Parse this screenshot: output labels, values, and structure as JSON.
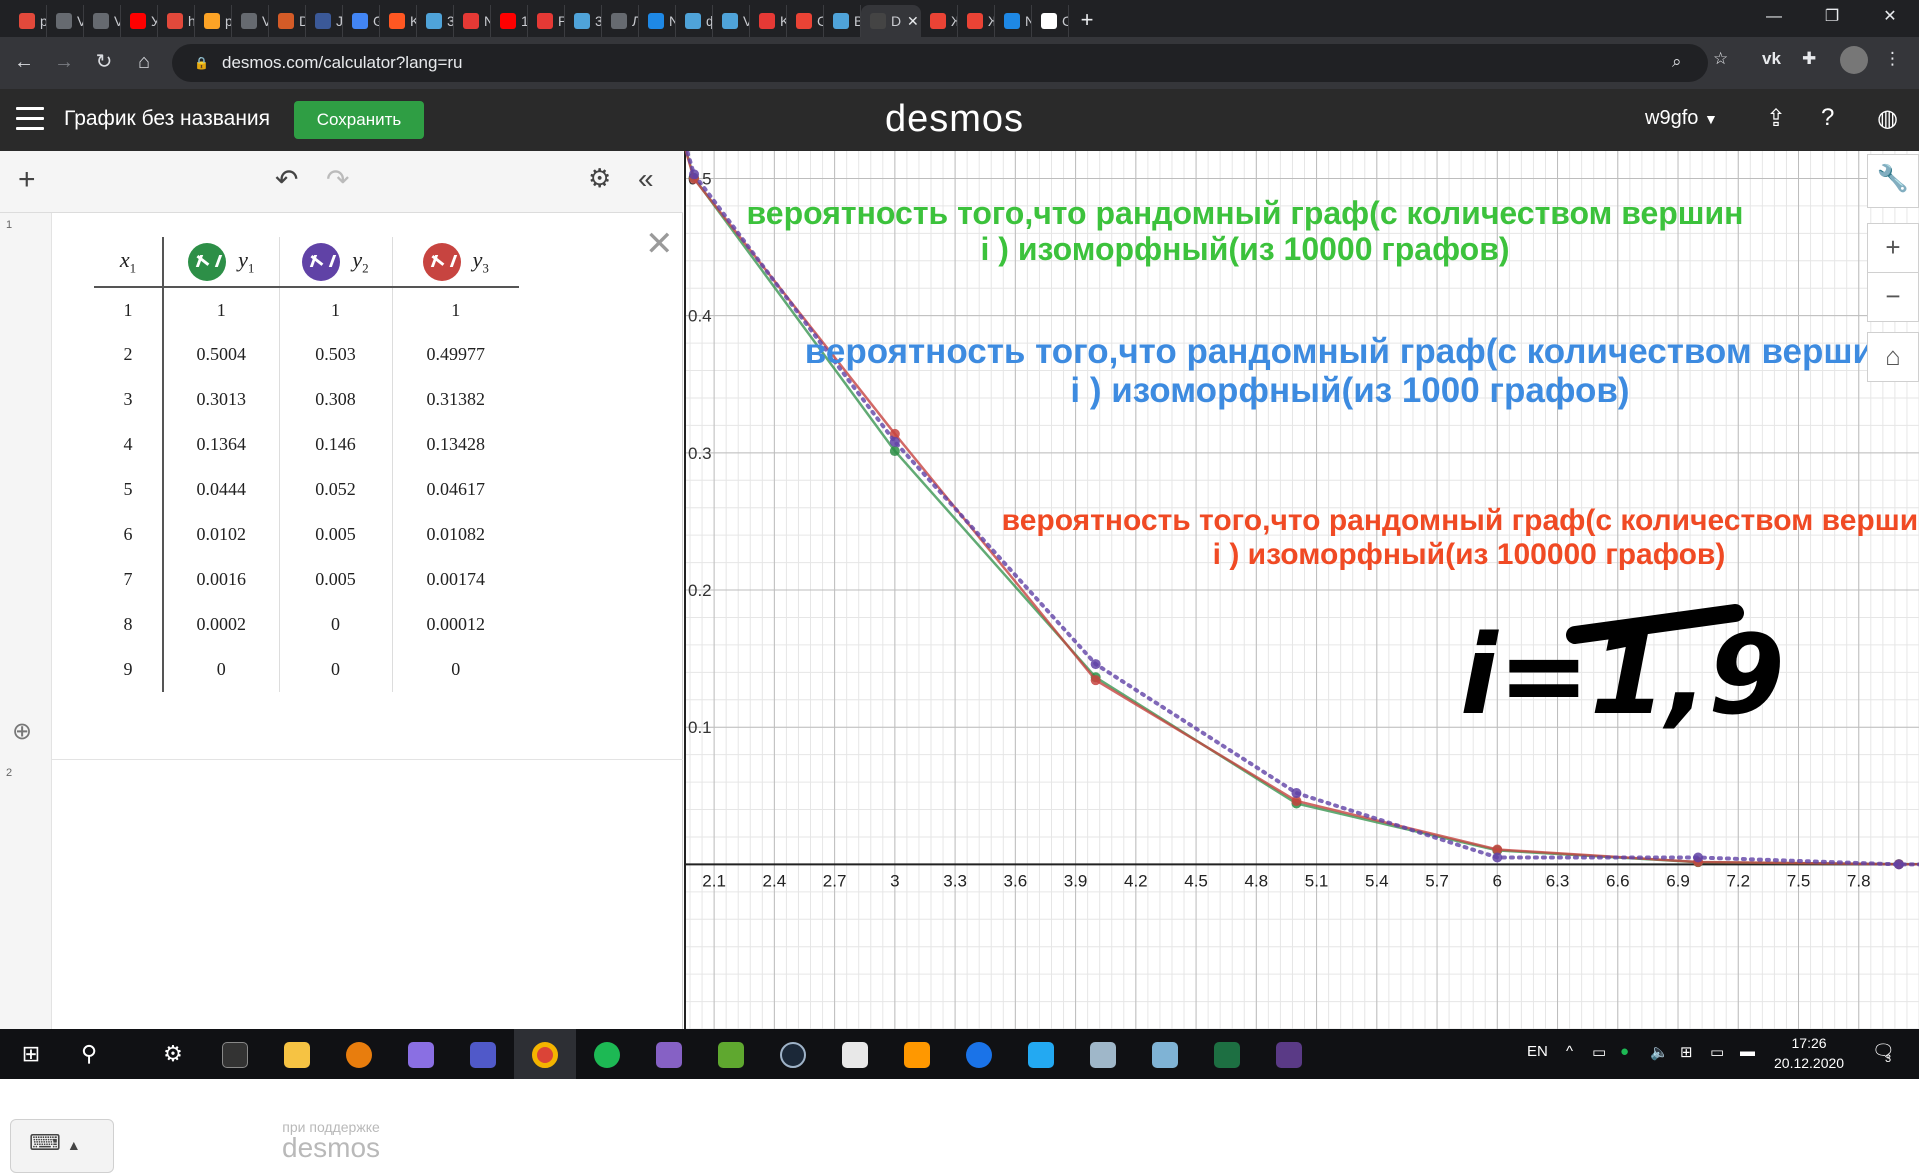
{
  "browser": {
    "tabs": [
      {
        "title": "р",
        "color": "#e2493b"
      },
      {
        "title": "V",
        "color": "#666a70"
      },
      {
        "title": "V",
        "color": "#666a70"
      },
      {
        "title": "У",
        "color": "#ff0000"
      },
      {
        "title": "h",
        "color": "#e2493b"
      },
      {
        "title": "р",
        "color": "#fca326"
      },
      {
        "title": "V",
        "color": "#666a70"
      },
      {
        "title": "D",
        "color": "#d45b27"
      },
      {
        "title": "Ji",
        "color": "#3b5998"
      },
      {
        "title": "G",
        "color": "#4285f4"
      },
      {
        "title": "K",
        "color": "#ff5722"
      },
      {
        "title": "3",
        "color": "#4fa3d9"
      },
      {
        "title": "N",
        "color": "#e53935"
      },
      {
        "title": "1",
        "color": "#ff0000"
      },
      {
        "title": "P",
        "color": "#e53935"
      },
      {
        "title": "3",
        "color": "#4fa3d9"
      },
      {
        "title": "Л",
        "color": "#666a70"
      },
      {
        "title": "N",
        "color": "#1e88e5"
      },
      {
        "title": "ф",
        "color": "#4fa3d9"
      },
      {
        "title": "V",
        "color": "#4fa3d9"
      },
      {
        "title": "K",
        "color": "#e53935"
      },
      {
        "title": "C",
        "color": "#ea4335"
      },
      {
        "title": "B",
        "color": "#4fa3d9"
      },
      {
        "title": "D",
        "color": "#444444",
        "active": true
      },
      {
        "title": "Ж",
        "color": "#ea4335"
      },
      {
        "title": "Ж",
        "color": "#ea4335"
      },
      {
        "title": "N",
        "color": "#1e88e5"
      },
      {
        "title": "C",
        "color": "#ffffff"
      }
    ],
    "new_tab": "+",
    "url": "desmos.com/calculator?lang=ru"
  },
  "desmos": {
    "graph_title": "График без названия",
    "save_label": "Сохранить",
    "logo": "desmos",
    "user": "w9gfo",
    "powered_by": "при поддержке",
    "powered_logo": "desmos"
  },
  "table": {
    "headers": [
      "x1",
      "y1",
      "y2",
      "y3"
    ],
    "series_colors": [
      "#2d8f47",
      "#6042a6",
      "#c74440"
    ],
    "rows": [
      [
        "1",
        "1",
        "1",
        "1"
      ],
      [
        "2",
        "0.5004",
        "0.503",
        "0.49977"
      ],
      [
        "3",
        "0.3013",
        "0.308",
        "0.31382"
      ],
      [
        "4",
        "0.1364",
        "0.146",
        "0.13428"
      ],
      [
        "5",
        "0.0444",
        "0.052",
        "0.04617"
      ],
      [
        "6",
        "0.0102",
        "0.005",
        "0.01082"
      ],
      [
        "7",
        "0.0016",
        "0.005",
        "0.00174"
      ],
      [
        "8",
        "0.0002",
        "0",
        "0.00012"
      ],
      [
        "9",
        "0",
        "0",
        "0"
      ]
    ]
  },
  "graph": {
    "x_ticks": [
      "2.1",
      "2.4",
      "2.7",
      "3",
      "3.3",
      "3.6",
      "3.9",
      "4.2",
      "4.5",
      "4.8",
      "5.1",
      "5.4",
      "5.7",
      "6",
      "6.3",
      "6.6",
      "6.9",
      "7.2",
      "7.5",
      "7.8"
    ],
    "y_ticks": [
      "0.5",
      "0.4",
      "0.3",
      "0.2",
      "0.1"
    ],
    "annotations": [
      {
        "text": "вероятность того,что рандомный граф(с количеством вершин i ) изоморфный(из 10000 графов)",
        "color": "#3cc23c"
      },
      {
        "text": "вероятность того,что рандомный граф(с количеством вершин i ) изоморфный(из 1000 графов)",
        "color": "#3d8be0"
      },
      {
        "text": "вероятность того,что рандомный граф(с количеством вершин i ) изоморфный(из 100000 графов)",
        "color": "#f04a24"
      }
    ],
    "handwriting": "i=1,9"
  },
  "chart_data": {
    "type": "line",
    "x": [
      1,
      2,
      3,
      4,
      5,
      6,
      7,
      8,
      9
    ],
    "series": [
      {
        "name": "y1",
        "values": [
          1,
          0.5004,
          0.3013,
          0.1364,
          0.0444,
          0.0102,
          0.0016,
          0.0002,
          0
        ],
        "color": "#2d8f47"
      },
      {
        "name": "y2",
        "values": [
          1,
          0.503,
          0.308,
          0.146,
          0.052,
          0.005,
          0.005,
          0,
          0
        ],
        "color": "#6042a6"
      },
      {
        "name": "y3",
        "values": [
          1,
          0.49977,
          0.31382,
          0.13428,
          0.04617,
          0.01082,
          0.00174,
          0.00012,
          0
        ],
        "color": "#c74440"
      }
    ],
    "xlim": [
      1.95,
      8.1
    ],
    "ylim": [
      -0.12,
      0.52
    ],
    "grid": true
  },
  "taskbar": {
    "lang": "EN",
    "time": "17:26",
    "date": "20.12.2020",
    "notifications": "3"
  }
}
